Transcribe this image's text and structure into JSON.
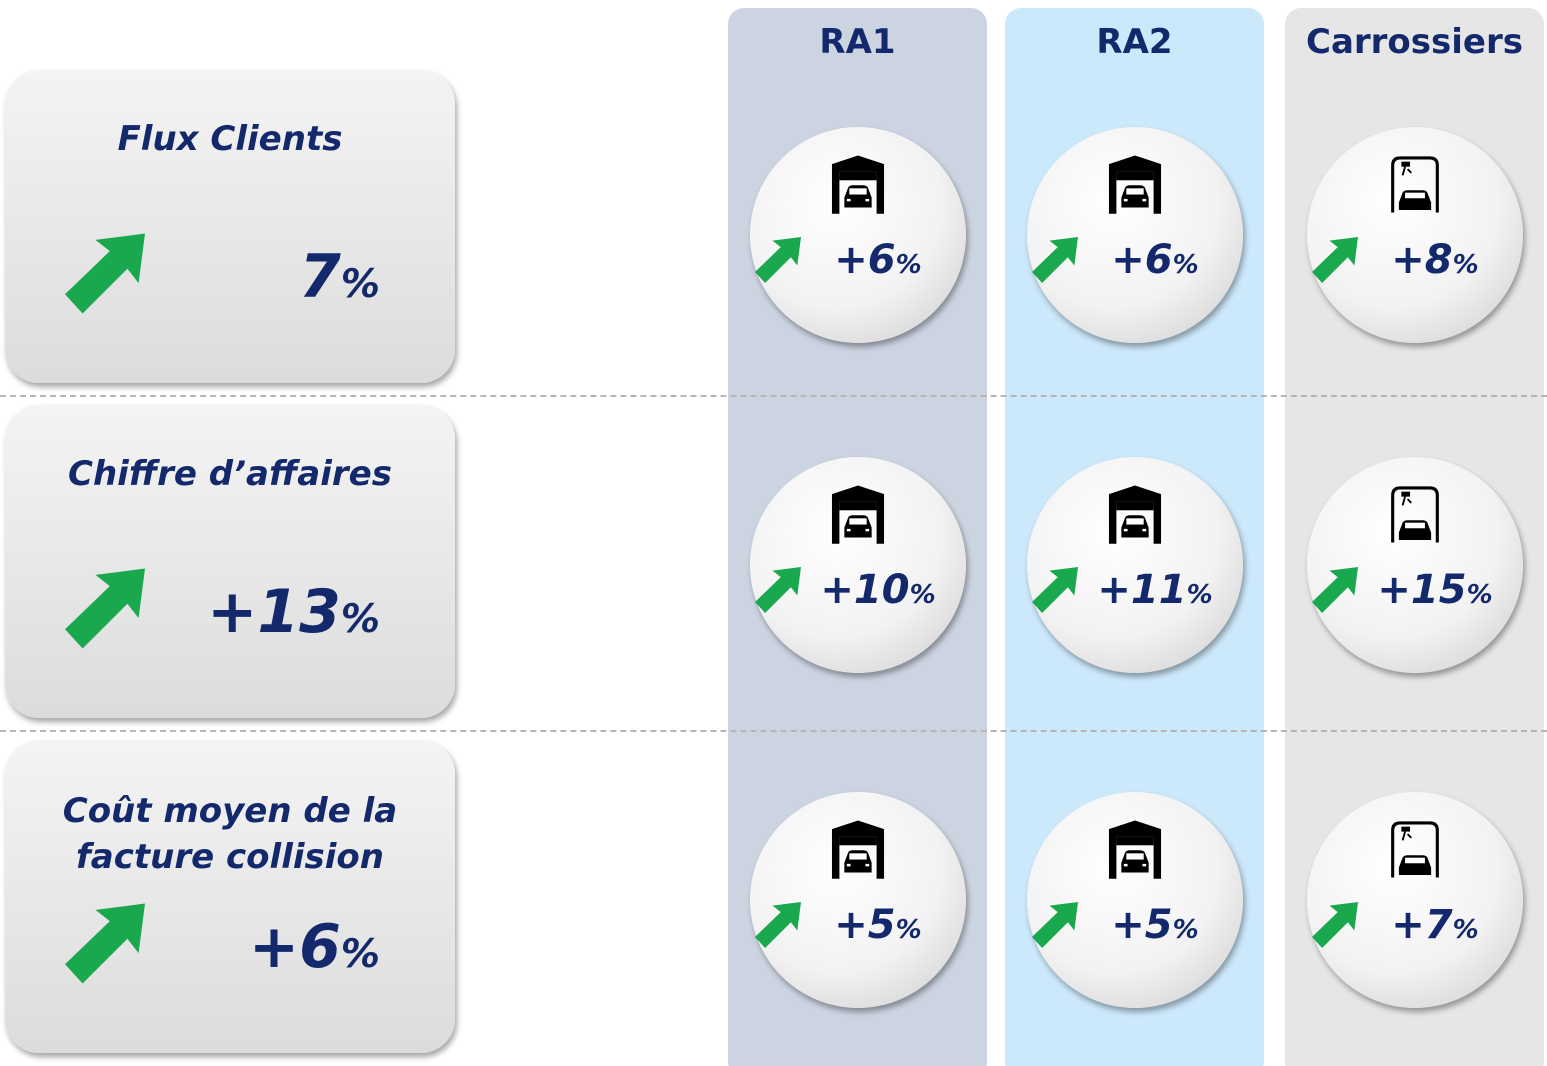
{
  "columns": [
    "RA1",
    "RA2",
    "Carrossiers"
  ],
  "rows": [
    {
      "label": "Flux Clients",
      "total": "7%",
      "values": [
        "+6%",
        "+6%",
        "+8%"
      ]
    },
    {
      "label": "Chiffre d’affaires",
      "total": "+13%",
      "values": [
        "+10%",
        "+11%",
        "+15%"
      ]
    },
    {
      "label": "Coût moyen de la facture collision",
      "total": "+6%",
      "values": [
        "+5%",
        "+5%",
        "+7%"
      ]
    }
  ]
}
